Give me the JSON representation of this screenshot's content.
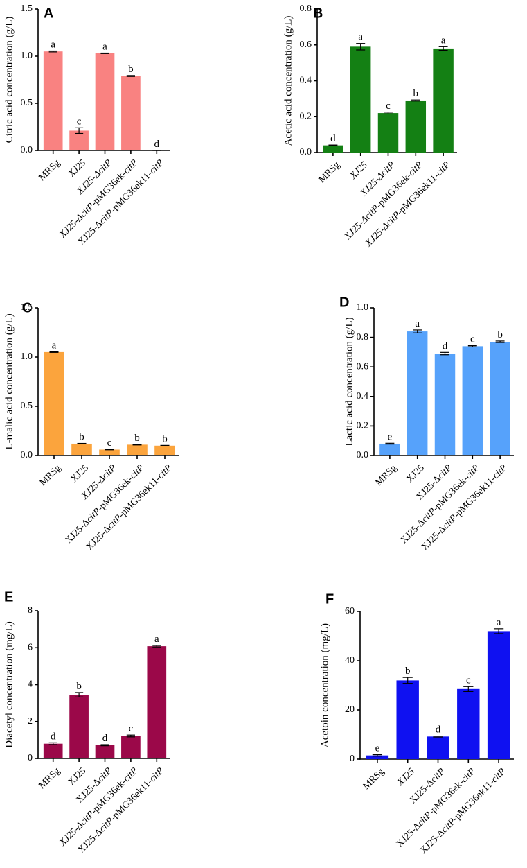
{
  "chart_data": [
    {
      "type": "bar",
      "panel": "A",
      "ylabel": "Citric acid concentration (g/L)",
      "ylim": [
        0,
        1.5
      ],
      "yticks": [
        "0.0",
        "0.5",
        "1.0",
        "1.5"
      ],
      "color": "#f98281",
      "categories": [
        [
          {
            "t": "MRSg",
            "i": false
          }
        ],
        [
          {
            "t": "XJ25",
            "i": true
          }
        ],
        [
          {
            "t": "XJ25-Δ",
            "i": true
          },
          {
            "t": "citP",
            "i": true
          }
        ],
        [
          {
            "t": "XJ25-Δ",
            "i": true
          },
          {
            "t": "citP",
            "i": true
          },
          {
            "t": "-pMG36ek-",
            "i": false
          },
          {
            "t": "citP",
            "i": true
          }
        ],
        [
          {
            "t": "XJ25-Δ",
            "i": false
          },
          {
            "t": "citP",
            "i": true
          },
          {
            "t": "-pMG36ek11-",
            "i": false
          },
          {
            "t": "citP",
            "i": true
          }
        ]
      ],
      "values": [
        1.05,
        0.21,
        1.03,
        0.79,
        0.0
      ],
      "errors": [
        0.005,
        0.03,
        0.003,
        0.005,
        0.0
      ],
      "letters": [
        "a",
        "c",
        "a",
        "b",
        "d"
      ]
    },
    {
      "type": "bar",
      "panel": "B",
      "ylabel": "Acetic acid concentration (g/L)",
      "ylim": [
        0,
        0.8
      ],
      "yticks": [
        "0.0",
        "0.2",
        "0.4",
        "0.6",
        "0.8"
      ],
      "color": "#148014",
      "categories": [
        [
          {
            "t": "MRSg",
            "i": false
          }
        ],
        [
          {
            "t": "XJ25",
            "i": true
          }
        ],
        [
          {
            "t": "XJ25-Δ",
            "i": true
          },
          {
            "t": "citP",
            "i": true
          }
        ],
        [
          {
            "t": "XJ25-Δ",
            "i": true
          },
          {
            "t": "citP",
            "i": true
          },
          {
            "t": "-pMG36ek-",
            "i": false
          },
          {
            "t": "citP",
            "i": true
          }
        ],
        [
          {
            "t": "XJ25-Δ",
            "i": true
          },
          {
            "t": "citP",
            "i": true
          },
          {
            "t": "-pMG36ek11-",
            "i": false
          },
          {
            "t": "citP",
            "i": true
          }
        ]
      ],
      "values": [
        0.04,
        0.59,
        0.22,
        0.29,
        0.58
      ],
      "errors": [
        0.002,
        0.018,
        0.005,
        0.003,
        0.01
      ],
      "letters": [
        "d",
        "a",
        "c",
        "b",
        "a"
      ]
    },
    {
      "type": "bar",
      "panel": "C",
      "ylabel": "L-malic acid concentration (g/L)",
      "ylim": [
        0,
        1.5
      ],
      "yticks": [
        "0.0",
        "0.5",
        "1.0",
        "1.5"
      ],
      "color": "#fba43d",
      "categories": [
        [
          {
            "t": "MRSg",
            "i": false
          }
        ],
        [
          {
            "t": "XJ25",
            "i": false
          }
        ],
        [
          {
            "t": "XJ25-Δ",
            "i": true
          },
          {
            "t": "citP",
            "i": true
          }
        ],
        [
          {
            "t": "XJ25-Δ",
            "i": false
          },
          {
            "t": "citP",
            "i": true
          },
          {
            "t": "-pMG36ek-",
            "i": false
          },
          {
            "t": "citP",
            "i": true
          }
        ],
        [
          {
            "t": "XJ25-Δ",
            "i": false
          },
          {
            "t": "citP",
            "i": true
          },
          {
            "t": "-pMG36ek11-",
            "i": false
          },
          {
            "t": "citP",
            "i": true
          }
        ]
      ],
      "values": [
        1.05,
        0.12,
        0.06,
        0.11,
        0.1
      ],
      "errors": [
        0.003,
        0.003,
        0.002,
        0.003,
        0.003
      ],
      "letters": [
        "a",
        "b",
        "c",
        "b",
        "b"
      ]
    },
    {
      "type": "bar",
      "panel": "D",
      "ylabel": "Lactic acid concentration (g/L)",
      "ylim": [
        0,
        1.0
      ],
      "yticks": [
        "0.0",
        "0.2",
        "0.4",
        "0.6",
        "0.8",
        "1.0"
      ],
      "color": "#56a2fb",
      "categories": [
        [
          {
            "t": "MRSg",
            "i": false
          }
        ],
        [
          {
            "t": "XJ25",
            "i": false
          }
        ],
        [
          {
            "t": "XJ25-Δ",
            "i": false
          },
          {
            "t": "citP",
            "i": true
          }
        ],
        [
          {
            "t": "XJ25-Δ",
            "i": false
          },
          {
            "t": "citP",
            "i": true
          },
          {
            "t": "-pMG36ek-",
            "i": false
          },
          {
            "t": "citP",
            "i": true
          }
        ],
        [
          {
            "t": "XJ25-Δ",
            "i": false
          },
          {
            "t": "citP",
            "i": true
          },
          {
            "t": "-pMG36ek11-",
            "i": false
          },
          {
            "t": "citP",
            "i": true
          }
        ]
      ],
      "values": [
        0.08,
        0.84,
        0.69,
        0.74,
        0.77
      ],
      "errors": [
        0.003,
        0.01,
        0.008,
        0.004,
        0.005
      ],
      "letters": [
        "e",
        "a",
        "d",
        "c",
        "b"
      ]
    },
    {
      "type": "bar",
      "panel": "E",
      "ylabel": "Diacetyl concentration (mg/L)",
      "ylim": [
        0,
        8
      ],
      "yticks": [
        "0",
        "2",
        "4",
        "6",
        "8"
      ],
      "color": "#9b0849",
      "categories": [
        [
          {
            "t": "MRSg",
            "i": false
          }
        ],
        [
          {
            "t": "XJ25",
            "i": false
          }
        ],
        [
          {
            "t": "XJ25-Δ",
            "i": false
          },
          {
            "t": "citP",
            "i": true
          }
        ],
        [
          {
            "t": "XJ25-Δ",
            "i": true
          },
          {
            "t": "citP",
            "i": true
          },
          {
            "t": "-pMG36ek-",
            "i": false
          },
          {
            "t": "citP",
            "i": true
          }
        ],
        [
          {
            "t": "XJ25-Δ",
            "i": false
          },
          {
            "t": "citP",
            "i": true
          },
          {
            "t": "-pMG36ek11-",
            "i": false
          },
          {
            "t": "citP",
            "i": true
          }
        ]
      ],
      "values": [
        0.8,
        3.45,
        0.72,
        1.22,
        6.08
      ],
      "errors": [
        0.05,
        0.12,
        0.03,
        0.05,
        0.04
      ],
      "letters": [
        "d",
        "b",
        "d",
        "c",
        "a"
      ]
    },
    {
      "type": "bar",
      "panel": "F",
      "ylabel": "Acetoin concentration (mg/L)",
      "ylim": [
        0,
        60
      ],
      "yticks": [
        "0",
        "20",
        "40",
        "60"
      ],
      "color": "#0f11f1",
      "categories": [
        [
          {
            "t": "MRSg",
            "i": false
          }
        ],
        [
          {
            "t": "XJ25",
            "i": true
          }
        ],
        [
          {
            "t": "XJ25-Δ",
            "i": false
          },
          {
            "t": "citP",
            "i": true
          }
        ],
        [
          {
            "t": "XJ25-Δ",
            "i": false
          },
          {
            "t": "citP",
            "i": true
          },
          {
            "t": "-pMG36ek-",
            "i": false
          },
          {
            "t": "citP",
            "i": true
          }
        ],
        [
          {
            "t": "XJ25-Δ",
            "i": false
          },
          {
            "t": "citP",
            "i": true
          },
          {
            "t": "-pMG36ek11-",
            "i": false
          },
          {
            "t": "citP",
            "i": true
          }
        ]
      ],
      "values": [
        1.5,
        32,
        9.2,
        28.5,
        52
      ],
      "errors": [
        0.3,
        1.2,
        0.2,
        1.0,
        1.0
      ],
      "letters": [
        "e",
        "b",
        "d",
        "c",
        "a"
      ]
    }
  ]
}
